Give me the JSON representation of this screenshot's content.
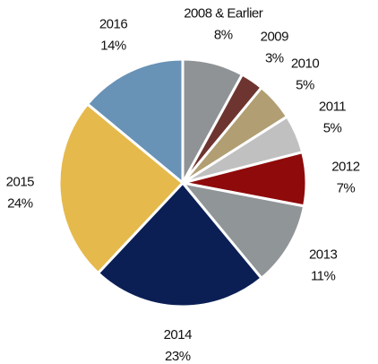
{
  "chart_data": {
    "type": "pie",
    "categories": [
      "2008 & Earlier",
      "2009",
      "2010",
      "2011",
      "2012",
      "2013",
      "2014",
      "2015",
      "2016"
    ],
    "values": [
      8,
      3,
      5,
      5,
      7,
      11,
      23,
      24,
      14
    ],
    "value_labels": [
      "8%",
      "3%",
      "5%",
      "5%",
      "7%",
      "11%",
      "23%",
      "24%",
      "14%"
    ],
    "colors": [
      "#8f9396",
      "#6e3530",
      "#b19e73",
      "#c0c0c1",
      "#8e0a0b",
      "#909598",
      "#0b1f55",
      "#e6b94c",
      "#6892b6"
    ]
  }
}
